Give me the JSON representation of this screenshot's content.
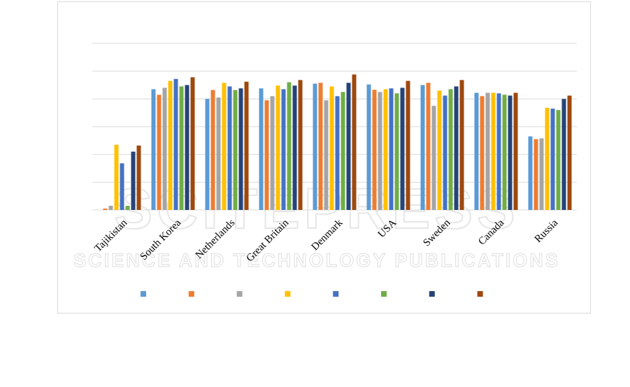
{
  "watermark": {
    "main": "SCITEPRESS",
    "sub": "SCIENCE AND TECHNOLOGY PUBLICATIONS"
  },
  "chart_data": {
    "type": "bar",
    "categories": [
      "Tajikistan",
      "South Korea",
      "Netherlands",
      "Great Britain",
      "Denmark",
      "USA",
      "Sweden",
      "Canada",
      "Russia"
    ],
    "ylim": [
      0,
      6
    ],
    "gridlines": 6,
    "grid": true,
    "y_tick_labels_visible": false,
    "legend_position": "bottom",
    "colors": [
      "#5b9bd5",
      "#ed7d31",
      "#a5a5a5",
      "#ffc000",
      "#4472c4",
      "#70ad47",
      "#264478",
      "#9e480e"
    ],
    "series": [
      {
        "values": [
          0.0,
          4.35,
          4.0,
          4.38,
          4.55,
          4.52,
          4.5,
          4.22,
          2.65
        ]
      },
      {
        "values": [
          0.05,
          4.15,
          4.32,
          3.95,
          4.58,
          4.33,
          4.58,
          4.1,
          2.55
        ]
      },
      {
        "values": [
          0.15,
          4.4,
          4.05,
          4.1,
          3.95,
          4.25,
          3.75,
          4.22,
          2.58
        ]
      },
      {
        "values": [
          2.35,
          4.65,
          4.58,
          4.48,
          4.45,
          4.35,
          4.3,
          4.22,
          3.68
        ]
      },
      {
        "values": [
          1.68,
          4.72,
          4.45,
          4.35,
          4.1,
          4.38,
          4.12,
          4.2,
          3.65
        ]
      },
      {
        "values": [
          0.15,
          4.45,
          4.32,
          4.6,
          4.25,
          4.2,
          4.35,
          4.15,
          3.6
        ]
      },
      {
        "values": [
          2.1,
          4.5,
          4.38,
          4.48,
          4.58,
          4.4,
          4.45,
          4.12,
          4.0
        ]
      },
      {
        "values": [
          2.32,
          4.78,
          4.62,
          4.68,
          4.88,
          4.65,
          4.68,
          4.22,
          4.12
        ]
      }
    ]
  }
}
